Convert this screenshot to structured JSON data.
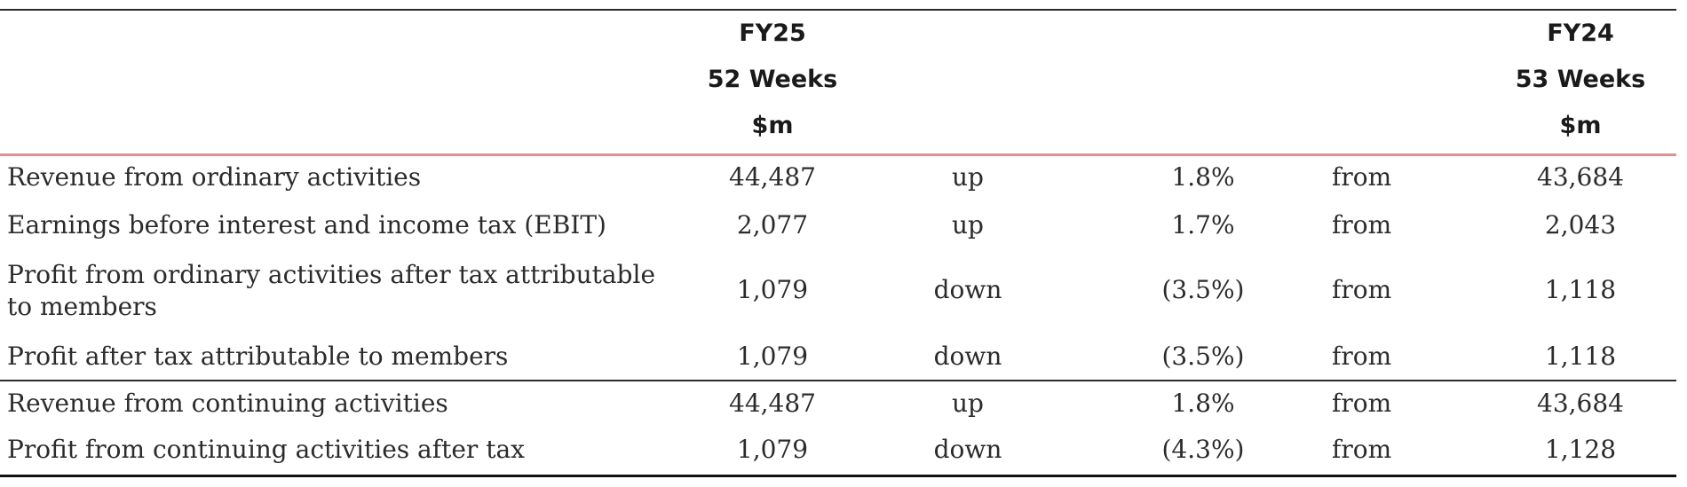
{
  "header": {
    "fy25": {
      "year": "FY25",
      "weeks": "52 Weeks",
      "unit": "$m"
    },
    "fy24": {
      "year": "FY24",
      "weeks": "53 Weeks",
      "unit": "$m"
    }
  },
  "rows": [
    {
      "label": "Revenue from ordinary activities",
      "fy25": "44,487",
      "direction": "up",
      "change": "1.8%",
      "from": "from",
      "fy24": "43,684"
    },
    {
      "label": "Earnings before interest and income tax (EBIT)",
      "fy25": "2,077",
      "direction": "up",
      "change": "1.7%",
      "from": "from",
      "fy24": "2,043"
    },
    {
      "label": "Profit from ordinary activities after tax attributable to members",
      "fy25": "1,079",
      "direction": "down",
      "change": "(3.5%)",
      "from": "from",
      "fy24": "1,118"
    },
    {
      "label": "Profit after tax attributable to members",
      "fy25": "1,079",
      "direction": "down",
      "change": "(3.5%)",
      "from": "from",
      "fy24": "1,118"
    },
    {
      "label": "Revenue from continuing activities",
      "fy25": "44,487",
      "direction": "up",
      "change": "1.8%",
      "from": "from",
      "fy24": "43,684"
    },
    {
      "label": "Profit from continuing activities after tax",
      "fy25": "1,079",
      "direction": "down",
      "change": "(4.3%)",
      "from": "from",
      "fy24": "1,128"
    }
  ]
}
